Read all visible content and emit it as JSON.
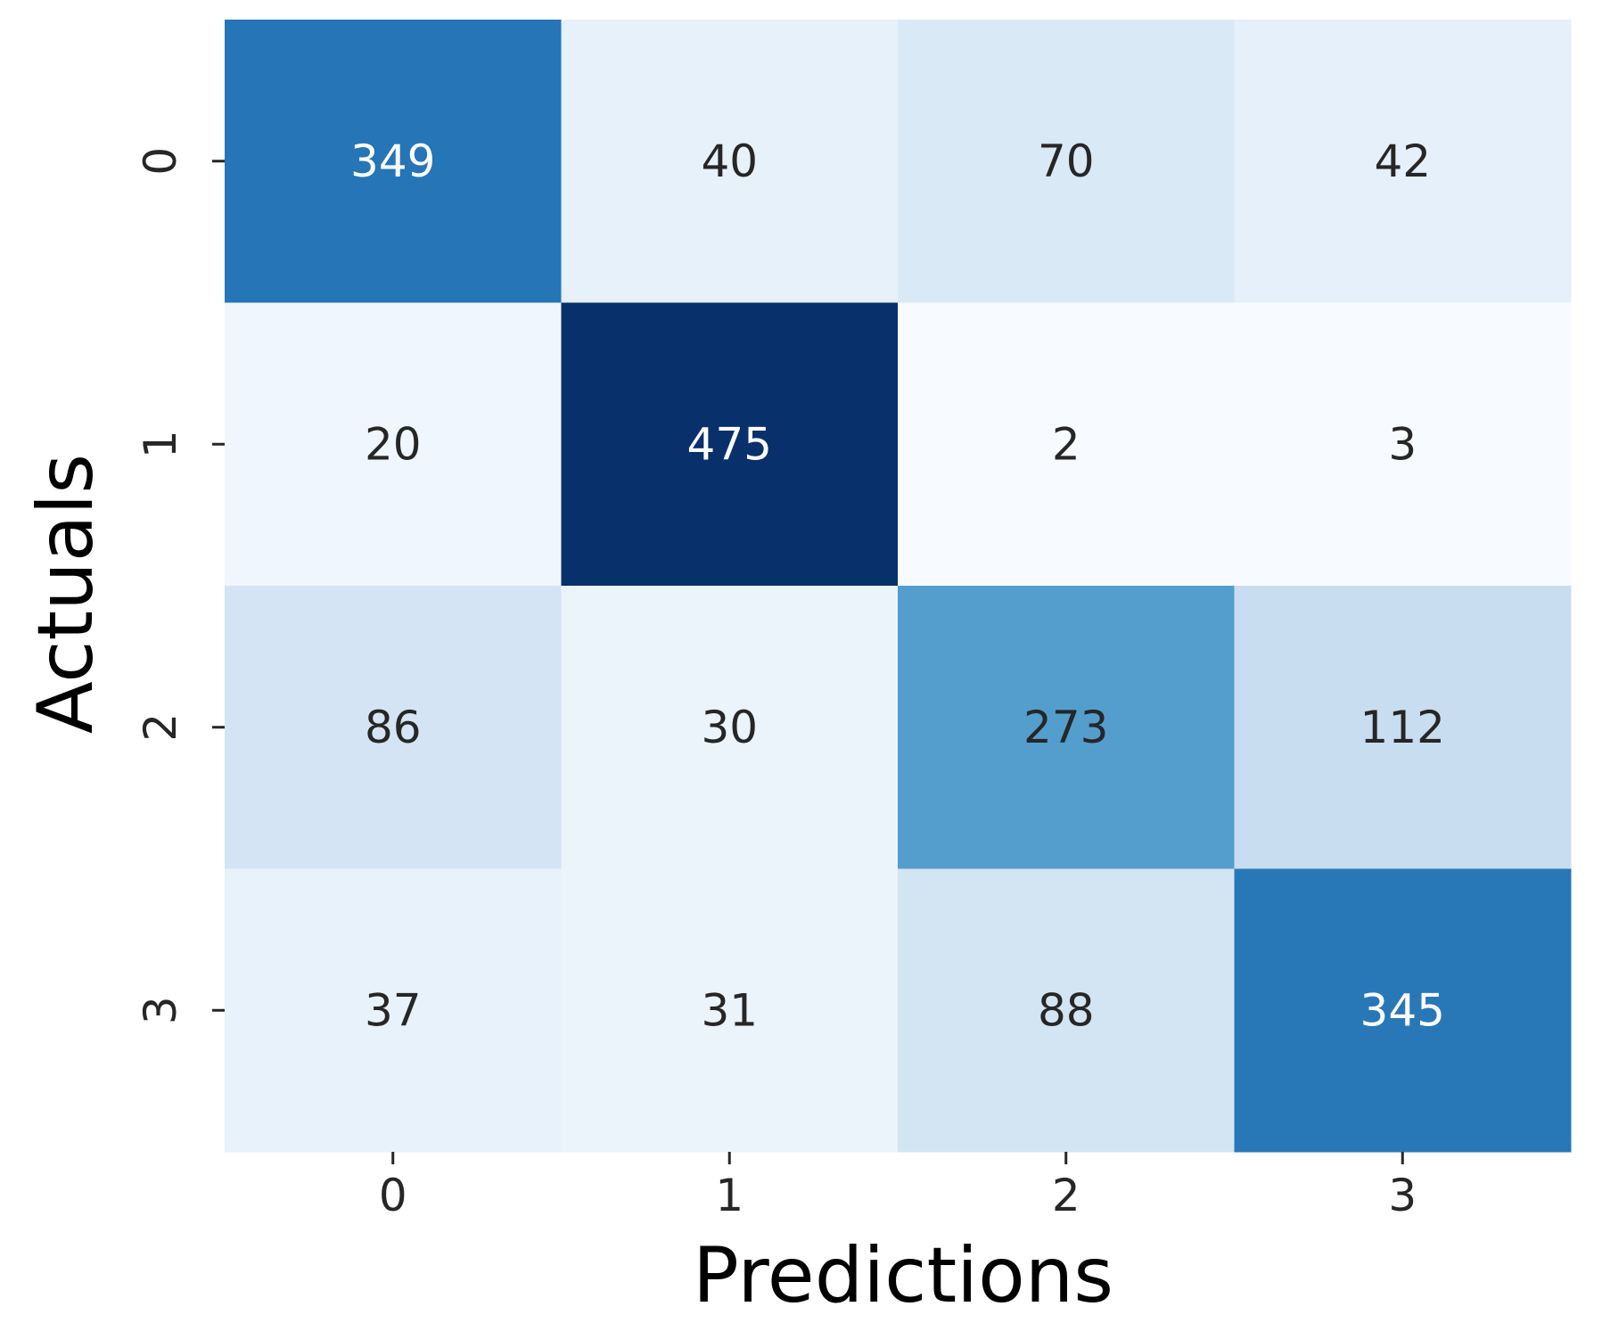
{
  "chart_data": {
    "type": "heatmap",
    "title": "",
    "xlabel": "Predictions",
    "ylabel": "Actuals",
    "x_categories": [
      "0",
      "1",
      "2",
      "3"
    ],
    "y_categories": [
      "0",
      "1",
      "2",
      "3"
    ],
    "values": [
      [
        349,
        40,
        70,
        42
      ],
      [
        20,
        475,
        2,
        3
      ],
      [
        86,
        30,
        273,
        112
      ],
      [
        37,
        31,
        88,
        345
      ]
    ],
    "value_range": [
      2,
      475
    ],
    "colormap": "Blues",
    "colorbar": false,
    "annotated": true,
    "colors": {
      "dark_text": "#262626",
      "light_text": "#ffffff"
    }
  }
}
